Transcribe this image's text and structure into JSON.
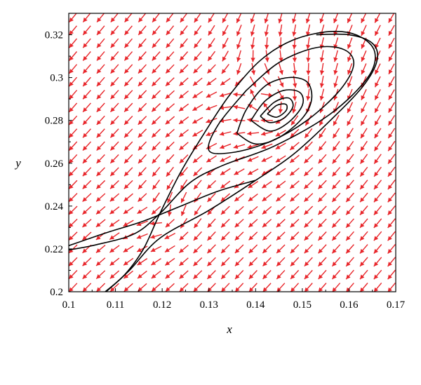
{
  "chart_data": {
    "type": "phase-portrait",
    "title": "",
    "xlabel": "x",
    "ylabel": "y",
    "xlim": [
      0.1,
      0.17
    ],
    "ylim": [
      0.2,
      0.33
    ],
    "xticks": [
      "0.1",
      "0.11",
      "0.12",
      "0.13",
      "0.14",
      "0.15",
      "0.16",
      "0.17"
    ],
    "yticks": [
      "0.2",
      "0.22",
      "0.24",
      "0.26",
      "0.28",
      "0.3",
      "0.32"
    ],
    "grid": false,
    "colors": {
      "arrows": "#e8262b",
      "curves": "#000000",
      "frame": "#000000"
    },
    "equilibria": [
      {
        "name": "saddle",
        "x": 0.1195,
        "y": 0.2365
      },
      {
        "name": "center",
        "x": 0.1445,
        "y": 0.2855
      }
    ],
    "trajectories": [
      {
        "name": "separatrix",
        "points": [
          [
            0.1078,
            0.2
          ],
          [
            0.112,
            0.208
          ],
          [
            0.116,
            0.22
          ],
          [
            0.1195,
            0.2365
          ],
          [
            0.124,
            0.256
          ],
          [
            0.129,
            0.274
          ],
          [
            0.1345,
            0.292
          ],
          [
            0.141,
            0.308
          ],
          [
            0.148,
            0.3175
          ],
          [
            0.156,
            0.3215
          ],
          [
            0.162,
            0.3195
          ],
          [
            0.1655,
            0.312
          ],
          [
            0.164,
            0.3
          ],
          [
            0.156,
            0.283
          ],
          [
            0.144,
            0.268
          ],
          [
            0.133,
            0.259
          ],
          [
            0.126,
            0.251
          ],
          [
            0.1195,
            0.2365
          ],
          [
            0.114,
            0.227
          ],
          [
            0.106,
            0.222
          ],
          [
            0.1,
            0.2195
          ]
        ]
      },
      {
        "name": "inner-loop-1",
        "points": [
          [
            0.138,
            0.294
          ],
          [
            0.145,
            0.307
          ],
          [
            0.153,
            0.314
          ],
          [
            0.159,
            0.313
          ],
          [
            0.161,
            0.306
          ],
          [
            0.158,
            0.294
          ],
          [
            0.151,
            0.28
          ],
          [
            0.143,
            0.27
          ],
          [
            0.135,
            0.265
          ],
          [
            0.13,
            0.266
          ],
          [
            0.132,
            0.278
          ],
          [
            0.138,
            0.294
          ]
        ]
      },
      {
        "name": "inner-loop-2",
        "points": [
          [
            0.136,
            0.274
          ],
          [
            0.138,
            0.285
          ],
          [
            0.142,
            0.296
          ],
          [
            0.147,
            0.3
          ],
          [
            0.151,
            0.298
          ],
          [
            0.152,
            0.29
          ],
          [
            0.15,
            0.281
          ],
          [
            0.145,
            0.272
          ],
          [
            0.14,
            0.269
          ],
          [
            0.136,
            0.274
          ]
        ]
      },
      {
        "name": "inner-loop-3",
        "points": [
          [
            0.139,
            0.28
          ],
          [
            0.142,
            0.289
          ],
          [
            0.146,
            0.294
          ],
          [
            0.1495,
            0.293
          ],
          [
            0.15,
            0.287
          ],
          [
            0.147,
            0.279
          ],
          [
            0.143,
            0.275
          ],
          [
            0.139,
            0.28
          ]
        ]
      },
      {
        "name": "inner-loop-4",
        "points": [
          [
            0.141,
            0.282
          ],
          [
            0.144,
            0.2885
          ],
          [
            0.147,
            0.2905
          ],
          [
            0.148,
            0.2865
          ],
          [
            0.146,
            0.281
          ],
          [
            0.143,
            0.279
          ],
          [
            0.141,
            0.282
          ]
        ]
      },
      {
        "name": "inner-loop-5",
        "points": [
          [
            0.1425,
            0.283
          ],
          [
            0.1445,
            0.287
          ],
          [
            0.1465,
            0.2875
          ],
          [
            0.1465,
            0.2845
          ],
          [
            0.1445,
            0.2815
          ],
          [
            0.1425,
            0.283
          ]
        ]
      },
      {
        "name": "lower-branch",
        "points": [
          [
            0.108,
            0.2
          ],
          [
            0.113,
            0.21
          ],
          [
            0.1195,
            0.225
          ],
          [
            0.13,
            0.238
          ],
          [
            0.14,
            0.252
          ],
          [
            0.148,
            0.264
          ],
          [
            0.156,
            0.28
          ],
          [
            0.163,
            0.296
          ],
          [
            0.166,
            0.308
          ],
          [
            0.165,
            0.316
          ],
          [
            0.16,
            0.32
          ],
          [
            0.153,
            0.32
          ]
        ]
      },
      {
        "name": "upper-branch",
        "points": [
          [
            0.1,
            0.2215
          ],
          [
            0.108,
            0.2275
          ],
          [
            0.116,
            0.233
          ],
          [
            0.124,
            0.24
          ],
          [
            0.132,
            0.247
          ],
          [
            0.14,
            0.252
          ]
        ]
      }
    ]
  }
}
